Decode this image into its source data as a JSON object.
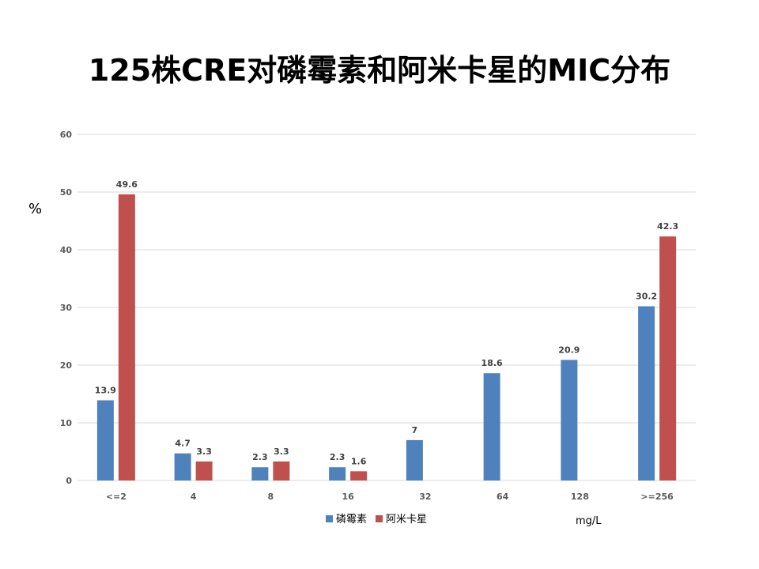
{
  "title": "125株CRE对磷霉素和阿米卡星的MIC分布",
  "unit_label": "mg/L",
  "colors": {
    "fosfomycin": "#4F81BD",
    "amikacin": "#C0504D",
    "grid": "#D9D9D9",
    "axis_text": "#595959"
  },
  "chart_data": {
    "type": "bar",
    "title": "125株CRE对磷霉素和阿米卡星的MIC分布",
    "xlabel": "mg/L",
    "ylabel": "%",
    "ylim": [
      0,
      60
    ],
    "yticks": [
      0,
      10,
      20,
      30,
      40,
      50,
      60
    ],
    "grid": true,
    "legend_position": "bottom",
    "categories": [
      "<=2",
      "4",
      "8",
      "16",
      "32",
      "64",
      "128",
      ">=256"
    ],
    "series": [
      {
        "name": "磷霉素",
        "color": "#4F81BD",
        "values": [
          13.9,
          4.7,
          2.3,
          2.3,
          7,
          18.6,
          20.9,
          30.2
        ]
      },
      {
        "name": "阿米卡星",
        "color": "#C0504D",
        "values": [
          49.6,
          3.3,
          3.3,
          1.6,
          null,
          null,
          null,
          42.3
        ]
      }
    ]
  }
}
